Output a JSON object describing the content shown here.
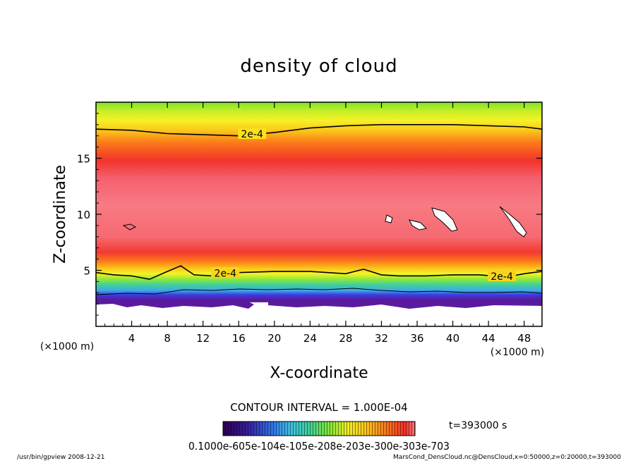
{
  "chart_data": {
    "type": "heatmap",
    "title": "density of cloud",
    "xlabel": "X-coordinate",
    "ylabel": "Z-coordinate",
    "x_unit_label": "(×1000 m)",
    "y_unit_label": "(×1000 m)",
    "xlim": [
      0,
      50
    ],
    "ylim": [
      0,
      20
    ],
    "x_ticks": [
      "4",
      "8",
      "12",
      "16",
      "20",
      "24",
      "28",
      "32",
      "36",
      "40",
      "44",
      "48"
    ],
    "y_ticks": [
      "5",
      "10",
      "15"
    ],
    "contour_labels": [
      {
        "text": "2e-4",
        "x": 17.5,
        "z": 17.1
      },
      {
        "text": "2e-4",
        "x": 14.5,
        "z": 4.7
      },
      {
        "text": "2e-4",
        "x": 45.5,
        "z": 4.4
      }
    ],
    "contour_upper_2e-4": [
      [
        0,
        17.6
      ],
      [
        4,
        17.5
      ],
      [
        8,
        17.2
      ],
      [
        12,
        17.1
      ],
      [
        16,
        17.0
      ],
      [
        20,
        17.3
      ],
      [
        24,
        17.7
      ],
      [
        28,
        17.9
      ],
      [
        32,
        18.0
      ],
      [
        36,
        18.0
      ],
      [
        40,
        18.0
      ],
      [
        44,
        17.9
      ],
      [
        48,
        17.8
      ],
      [
        50,
        17.6
      ]
    ],
    "contour_lower_2e-4": [
      [
        0,
        4.8
      ],
      [
        2,
        4.6
      ],
      [
        4,
        4.5
      ],
      [
        6,
        4.2
      ],
      [
        8,
        4.9
      ],
      [
        9.5,
        5.4
      ],
      [
        11,
        4.6
      ],
      [
        13,
        4.5
      ],
      [
        16,
        4.8
      ],
      [
        20,
        4.9
      ],
      [
        24,
        4.9
      ],
      [
        28,
        4.7
      ],
      [
        30,
        5.1
      ],
      [
        32,
        4.6
      ],
      [
        34,
        4.5
      ],
      [
        37,
        4.5
      ],
      [
        40,
        4.6
      ],
      [
        43,
        4.6
      ],
      [
        46,
        4.4
      ],
      [
        48,
        4.7
      ],
      [
        50,
        4.9
      ]
    ],
    "contour_interval": "CONTOUR INTERVAL = 1.000E-04",
    "colorbar_labels": "0.1000e-605e-104e-105e-208e-203e-300e-303e-703",
    "colorbar_colors": [
      "#2b0052",
      "#3a1a9a",
      "#2f6fe8",
      "#3fbfe0",
      "#3fd09a",
      "#7ee53a",
      "#c8ee2a",
      "#f8f026",
      "#fbc21a",
      "#fb7a1a",
      "#f5302a",
      "#f57a80"
    ],
    "time_label": "t=393000 s",
    "footer_left": "/usr/bin/gpview   2008-12-21",
    "footer_right": "MarsCond_DensCloud.nc@DensCloud,x=0:50000,z=0:20000,t=393000"
  }
}
